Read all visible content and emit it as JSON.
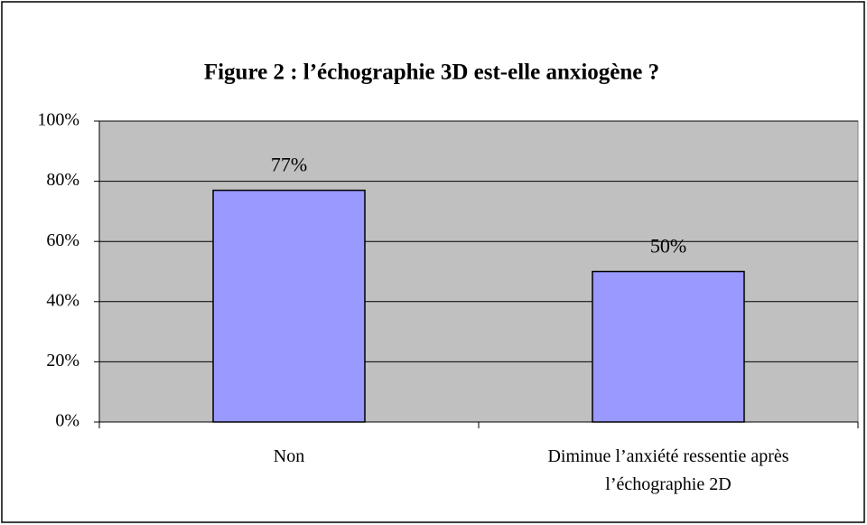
{
  "chart_data": {
    "type": "bar",
    "title": "Figure 2 : l’échographie 3D est-elle anxiogène ?",
    "categories": [
      "Non",
      "Diminue l’anxiété ressentie après l’échographie 2D"
    ],
    "values": [
      77,
      50
    ],
    "value_labels": [
      "77%",
      "50%"
    ],
    "color": "#9999ff",
    "ylim": [
      0,
      100
    ],
    "yticks": [
      {
        "value": 0,
        "label": "0%"
      },
      {
        "value": 20,
        "label": "20%"
      },
      {
        "value": 40,
        "label": "40%"
      },
      {
        "value": 60,
        "label": "60%"
      },
      {
        "value": 80,
        "label": "80%"
      },
      {
        "value": 100,
        "label": "100%"
      }
    ],
    "grid": true
  }
}
